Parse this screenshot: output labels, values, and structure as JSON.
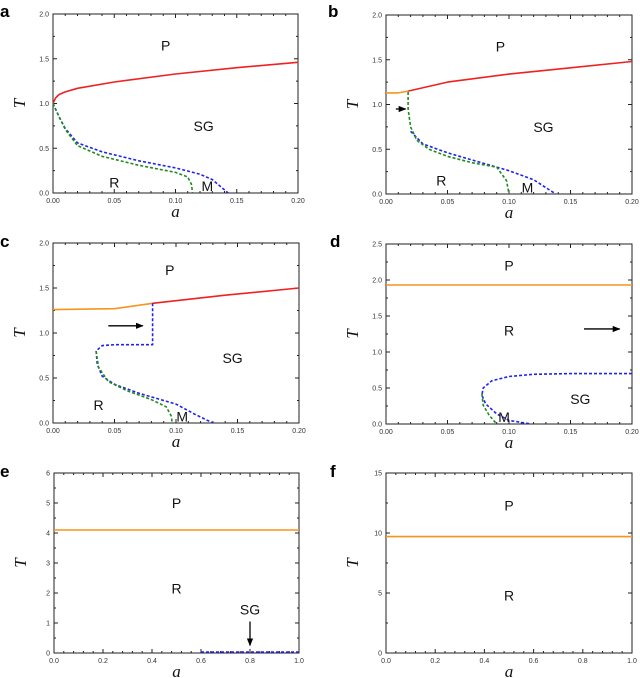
{
  "chart_data": [
    {
      "panel": "a",
      "type": "line",
      "xlabel": "a",
      "ylabel": "T",
      "xlim": [
        0,
        0.2
      ],
      "ylim": [
        0,
        2.0
      ],
      "xticks": [
        "0.00",
        "0.05",
        "0.10",
        "0.15",
        "0.20"
      ],
      "yticks": [
        "0.0",
        "0.5",
        "1.0",
        "1.5",
        "2.0"
      ],
      "series": [
        {
          "color": "#ee2222",
          "style": "solid",
          "points": [
            [
              0,
              1.0
            ],
            [
              0.002,
              1.06
            ],
            [
              0.005,
              1.1
            ],
            [
              0.01,
              1.13
            ],
            [
              0.02,
              1.17
            ],
            [
              0.05,
              1.24
            ],
            [
              0.1,
              1.33
            ],
            [
              0.15,
              1.4
            ],
            [
              0.2,
              1.46
            ]
          ]
        },
        {
          "color": "#2222ee",
          "style": "dashed",
          "points": [
            [
              0,
              1.0
            ],
            [
              0.005,
              0.85
            ],
            [
              0.01,
              0.72
            ],
            [
              0.02,
              0.56
            ],
            [
              0.04,
              0.46
            ],
            [
              0.07,
              0.36
            ],
            [
              0.1,
              0.28
            ],
            [
              0.12,
              0.21
            ],
            [
              0.13,
              0.15
            ],
            [
              0.143,
              0
            ]
          ]
        },
        {
          "color": "#1e8c1e",
          "style": "dashed",
          "points": [
            [
              0,
              1.0
            ],
            [
              0.005,
              0.85
            ],
            [
              0.01,
              0.71
            ],
            [
              0.02,
              0.53
            ],
            [
              0.04,
              0.41
            ],
            [
              0.07,
              0.31
            ],
            [
              0.1,
              0.23
            ],
            [
              0.11,
              0.18
            ],
            [
              0.113,
              0.1
            ],
            [
              0.114,
              0
            ]
          ]
        }
      ],
      "regions": [
        {
          "text": "P",
          "x": 0.092,
          "y": 1.65
        },
        {
          "text": "SG",
          "x": 0.123,
          "y": 0.75
        },
        {
          "text": "R",
          "x": 0.05,
          "y": 0.12
        },
        {
          "text": "M",
          "x": 0.126,
          "y": 0.08
        }
      ],
      "arrows": []
    },
    {
      "panel": "b",
      "type": "line",
      "xlabel": "a",
      "ylabel": "T",
      "xlim": [
        0,
        0.2
      ],
      "ylim": [
        0,
        2.0
      ],
      "xticks": [
        "0.00",
        "0.05",
        "0.10",
        "0.15",
        "0.20"
      ],
      "yticks": [
        "0.0",
        "0.5",
        "1.0",
        "1.5",
        "2.0"
      ],
      "series": [
        {
          "color": "#f7941d",
          "style": "solid",
          "points": [
            [
              0,
              1.13
            ],
            [
              0.01,
              1.13
            ],
            [
              0.018,
              1.15
            ]
          ]
        },
        {
          "color": "#ee2222",
          "style": "solid",
          "points": [
            [
              0.018,
              1.15
            ],
            [
              0.05,
              1.25
            ],
            [
              0.1,
              1.34
            ],
            [
              0.15,
              1.41
            ],
            [
              0.2,
              1.48
            ]
          ]
        },
        {
          "color": "#2222ee",
          "style": "dashed",
          "points": [
            [
              0.02,
              0.7
            ],
            [
              0.03,
              0.56
            ],
            [
              0.05,
              0.46
            ],
            [
              0.08,
              0.34
            ],
            [
              0.1,
              0.26
            ],
            [
              0.12,
              0.16
            ],
            [
              0.138,
              0
            ]
          ]
        },
        {
          "color": "#1e8c1e",
          "style": "dashed",
          "points": [
            [
              0.018,
              1.14
            ],
            [
              0.018,
              0.95
            ],
            [
              0.02,
              0.75
            ],
            [
              0.025,
              0.6
            ],
            [
              0.035,
              0.5
            ],
            [
              0.05,
              0.42
            ],
            [
              0.07,
              0.35
            ],
            [
              0.09,
              0.3
            ],
            [
              0.098,
              0.15
            ],
            [
              0.1,
              0
            ]
          ]
        }
      ],
      "regions": [
        {
          "text": "P",
          "x": 0.093,
          "y": 1.65
        },
        {
          "text": "SG",
          "x": 0.128,
          "y": 0.75
        },
        {
          "text": "R",
          "x": 0.045,
          "y": 0.15
        },
        {
          "text": "M",
          "x": 0.115,
          "y": 0.07
        }
      ],
      "arrows": [
        {
          "from": [
            0.008,
            0.95
          ],
          "to": [
            0.016,
            0.95
          ]
        }
      ]
    },
    {
      "panel": "c",
      "type": "line",
      "xlabel": "a",
      "ylabel": "T",
      "xlim": [
        0,
        0.2
      ],
      "ylim": [
        0,
        2.0
      ],
      "xticks": [
        "0.00",
        "0.05",
        "0.10",
        "0.15",
        "0.20"
      ],
      "yticks": [
        "0.0",
        "0.5",
        "1.0",
        "1.5",
        "2.0"
      ],
      "series": [
        {
          "color": "#f7941d",
          "style": "solid",
          "points": [
            [
              0,
              1.26
            ],
            [
              0.05,
              1.27
            ],
            [
              0.081,
              1.33
            ]
          ]
        },
        {
          "color": "#ee2222",
          "style": "solid",
          "points": [
            [
              0.081,
              1.33
            ],
            [
              0.14,
              1.42
            ],
            [
              0.2,
              1.5
            ]
          ]
        },
        {
          "color": "#2222ee",
          "style": "dashed",
          "points": [
            [
              0.081,
              1.33
            ],
            [
              0.081,
              0.87
            ],
            [
              0.05,
              0.87
            ],
            [
              0.04,
              0.86
            ],
            [
              0.035,
              0.8
            ],
            [
              0.036,
              0.65
            ],
            [
              0.04,
              0.52
            ],
            [
              0.05,
              0.43
            ],
            [
              0.07,
              0.33
            ],
            [
              0.1,
              0.21
            ],
            [
              0.115,
              0.1
            ],
            [
              0.13,
              0
            ]
          ]
        },
        {
          "color": "#1e8c1e",
          "style": "dashed",
          "points": [
            [
              0.035,
              0.8
            ],
            [
              0.037,
              0.62
            ],
            [
              0.045,
              0.46
            ],
            [
              0.06,
              0.36
            ],
            [
              0.08,
              0.26
            ],
            [
              0.092,
              0.18
            ],
            [
              0.096,
              0.08
            ],
            [
              0.097,
              0
            ]
          ]
        }
      ],
      "regions": [
        {
          "text": "P",
          "x": 0.095,
          "y": 1.7
        },
        {
          "text": "SG",
          "x": 0.146,
          "y": 0.72
        },
        {
          "text": "R",
          "x": 0.037,
          "y": 0.2
        },
        {
          "text": "M",
          "x": 0.105,
          "y": 0.07
        }
      ],
      "arrows": [
        {
          "from": [
            0.045,
            1.08
          ],
          "to": [
            0.073,
            1.08
          ]
        }
      ]
    },
    {
      "panel": "d",
      "type": "line",
      "xlabel": "a",
      "ylabel": "T",
      "xlim": [
        0,
        0.2
      ],
      "ylim": [
        0,
        2.5
      ],
      "xticks": [
        "0.00",
        "0.05",
        "0.10",
        "0.15",
        "0.20"
      ],
      "yticks": [
        "0.0",
        "0.5",
        "1.0",
        "1.5",
        "2.0",
        "2.5"
      ],
      "series": [
        {
          "color": "#f7941d",
          "style": "solid",
          "points": [
            [
              0,
              1.93
            ],
            [
              0.2,
              1.93
            ]
          ]
        },
        {
          "color": "#2222ee",
          "style": "dashed",
          "points": [
            [
              0.2,
              0.7
            ],
            [
              0.15,
              0.7
            ],
            [
              0.12,
              0.69
            ],
            [
              0.1,
              0.66
            ],
            [
              0.086,
              0.6
            ],
            [
              0.079,
              0.5
            ],
            [
              0.078,
              0.4
            ],
            [
              0.081,
              0.28
            ],
            [
              0.09,
              0.14
            ],
            [
              0.1,
              0.05
            ],
            [
              0.118,
              0
            ]
          ]
        },
        {
          "color": "#1e8c1e",
          "style": "dashed",
          "points": [
            [
              0.078,
              0.42
            ],
            [
              0.079,
              0.26
            ],
            [
              0.084,
              0.12
            ],
            [
              0.09,
              0
            ]
          ]
        }
      ],
      "regions": [
        {
          "text": "P",
          "x": 0.1,
          "y": 2.2
        },
        {
          "text": "R",
          "x": 0.1,
          "y": 1.3
        },
        {
          "text": "SG",
          "x": 0.158,
          "y": 0.35
        },
        {
          "text": "M",
          "x": 0.096,
          "y": 0.1
        }
      ],
      "arrows": [
        {
          "from": [
            0.161,
            1.32
          ],
          "to": [
            0.19,
            1.32
          ]
        }
      ]
    },
    {
      "panel": "e",
      "type": "line",
      "xlabel": "a",
      "ylabel": "T",
      "xlim": [
        0,
        1.0
      ],
      "ylim": [
        0,
        6
      ],
      "xticks": [
        "0.0",
        "0.2",
        "0.4",
        "0.6",
        "0.8",
        "1.0"
      ],
      "yticks": [
        "0",
        "1",
        "2",
        "3",
        "4",
        "5",
        "6"
      ],
      "series": [
        {
          "color": "#f7941d",
          "style": "solid",
          "points": [
            [
              0,
              4.1
            ],
            [
              1.0,
              4.1
            ]
          ]
        },
        {
          "color": "#2222ee",
          "style": "dashed",
          "points": [
            [
              0.6,
              0.03
            ],
            [
              1.0,
              0.03
            ]
          ]
        }
      ],
      "regions": [
        {
          "text": "P",
          "x": 0.5,
          "y": 5.0
        },
        {
          "text": "R",
          "x": 0.5,
          "y": 2.15
        },
        {
          "text": "SG",
          "x": 0.8,
          "y": 1.45
        }
      ],
      "arrows": [
        {
          "from": [
            0.8,
            1.05
          ],
          "to": [
            0.8,
            0.25
          ]
        }
      ]
    },
    {
      "panel": "f",
      "type": "line",
      "xlabel": "a",
      "ylabel": "T",
      "xlim": [
        0,
        1.0
      ],
      "ylim": [
        0,
        15
      ],
      "xticks": [
        "0.0",
        "0.2",
        "0.4",
        "0.6",
        "0.8",
        "1.0"
      ],
      "yticks": [
        "0",
        "5",
        "10",
        "15"
      ],
      "series": [
        {
          "color": "#f7941d",
          "style": "solid",
          "points": [
            [
              0,
              9.7
            ],
            [
              1.0,
              9.7
            ]
          ]
        }
      ],
      "regions": [
        {
          "text": "P",
          "x": 0.5,
          "y": 12.3
        },
        {
          "text": "R",
          "x": 0.5,
          "y": 4.8
        }
      ],
      "arrows": []
    }
  ]
}
